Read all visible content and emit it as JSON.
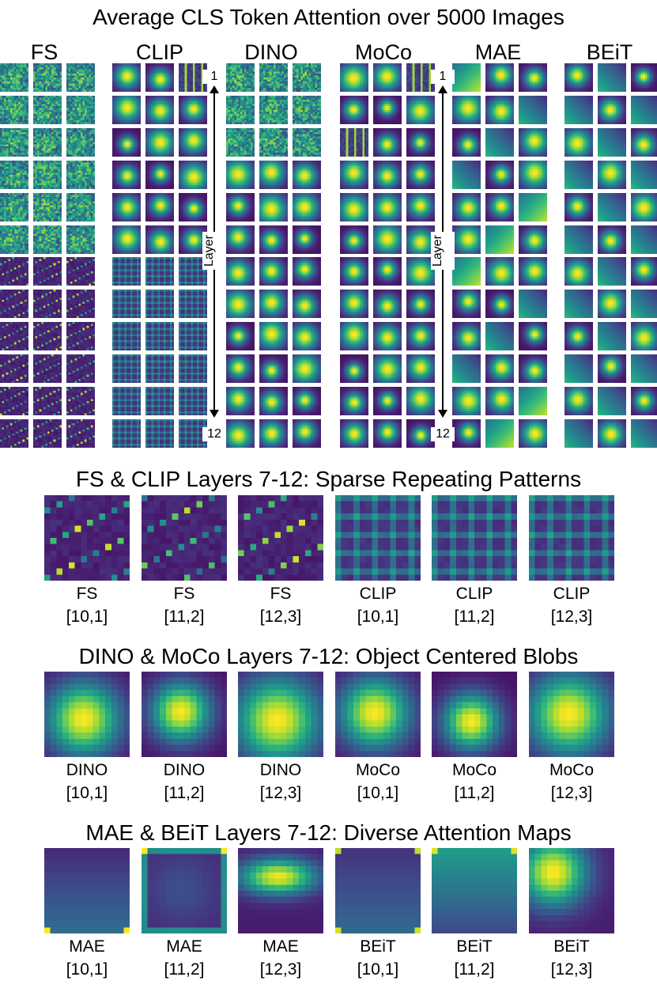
{
  "figure": {
    "title": "Average CLS Token Attention over 5000 Images",
    "models": [
      "FS",
      "CLIP",
      "DINO",
      "MoCo",
      "MAE",
      "BEiT"
    ],
    "layer_axis": {
      "label": "Layer",
      "start": "1",
      "end": "12"
    },
    "grid": {
      "layers": 12,
      "heads_per_model": 3
    }
  },
  "sections": [
    {
      "title": "FS & CLIP Layers 7-12: Sparse Repeating Patterns",
      "panels": [
        {
          "model": "FS",
          "pos": "[10,1]",
          "pattern": "sparse"
        },
        {
          "model": "FS",
          "pos": "[11,2]",
          "pattern": "sparse"
        },
        {
          "model": "FS",
          "pos": "[12,3]",
          "pattern": "sparse"
        },
        {
          "model": "CLIP",
          "pos": "[10,1]",
          "pattern": "lattice"
        },
        {
          "model": "CLIP",
          "pos": "[11,2]",
          "pattern": "lattice"
        },
        {
          "model": "CLIP",
          "pos": "[12,3]",
          "pattern": "lattice"
        }
      ]
    },
    {
      "title": "DINO & MoCo Layers 7-12: Object Centered Blobs",
      "panels": [
        {
          "model": "DINO",
          "pos": "[10,1]",
          "pattern": "blob"
        },
        {
          "model": "DINO",
          "pos": "[11,2]",
          "pattern": "blob"
        },
        {
          "model": "DINO",
          "pos": "[12,3]",
          "pattern": "blob"
        },
        {
          "model": "MoCo",
          "pos": "[10,1]",
          "pattern": "blob"
        },
        {
          "model": "MoCo",
          "pos": "[11,2]",
          "pattern": "blob"
        },
        {
          "model": "MoCo",
          "pos": "[12,3]",
          "pattern": "blob"
        }
      ]
    },
    {
      "title": "MAE & BEiT Layers 7-12: Diverse Attention Maps",
      "panels": [
        {
          "model": "MAE",
          "pos": "[10,1]",
          "pattern": "corner-bottom"
        },
        {
          "model": "MAE",
          "pos": "[11,2]",
          "pattern": "edge-frame"
        },
        {
          "model": "MAE",
          "pos": "[12,3]",
          "pattern": "upper-band"
        },
        {
          "model": "BEiT",
          "pos": "[10,1]",
          "pattern": "corners-top"
        },
        {
          "model": "BEiT",
          "pos": "[11,2]",
          "pattern": "top-gradient"
        },
        {
          "model": "BEiT",
          "pos": "[12,3]",
          "pattern": "left-blob"
        }
      ]
    }
  ],
  "colors": {
    "low": "#440154",
    "mid": "#21918c",
    "high": "#fde725"
  }
}
